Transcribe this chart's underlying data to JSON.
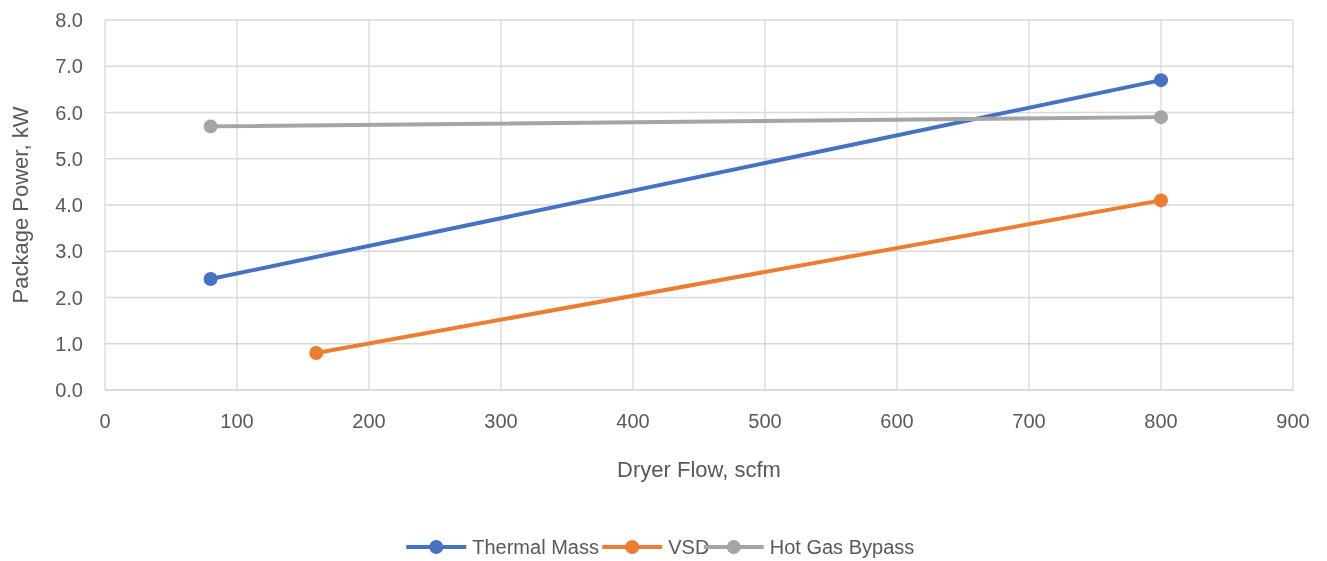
{
  "chart_data": {
    "type": "line",
    "xlabel": "Dryer Flow, scfm",
    "ylabel": "Package Power, kW",
    "xlim": [
      0,
      900
    ],
    "xticks": [
      0,
      100,
      200,
      300,
      400,
      500,
      600,
      700,
      800,
      900
    ],
    "ylim": [
      0,
      8
    ],
    "yticks": [
      {
        "value": 0,
        "label": "0.0"
      },
      {
        "value": 1,
        "label": "1.0"
      },
      {
        "value": 2,
        "label": "2.0"
      },
      {
        "value": 3,
        "label": "3.0"
      },
      {
        "value": 4,
        "label": "4.0"
      },
      {
        "value": 5,
        "label": "5.0"
      },
      {
        "value": 6,
        "label": "6.0"
      },
      {
        "value": 7,
        "label": "7.0"
      },
      {
        "value": 8,
        "label": "8.0"
      }
    ],
    "grid": true,
    "legend": "bottom",
    "marker": "circle",
    "line_style": "solid",
    "series": [
      {
        "name": "Thermal Mass",
        "color": "#4472c4",
        "x": [
          80,
          800
        ],
        "values": [
          2.4,
          6.7
        ]
      },
      {
        "name": "VSD",
        "color": "#ed7d31",
        "x": [
          160,
          800
        ],
        "values": [
          0.8,
          4.1
        ]
      },
      {
        "name": "Hot Gas Bypass",
        "color": "#a5a5a5",
        "x": [
          80,
          800
        ],
        "values": [
          5.7,
          5.9
        ]
      }
    ]
  }
}
